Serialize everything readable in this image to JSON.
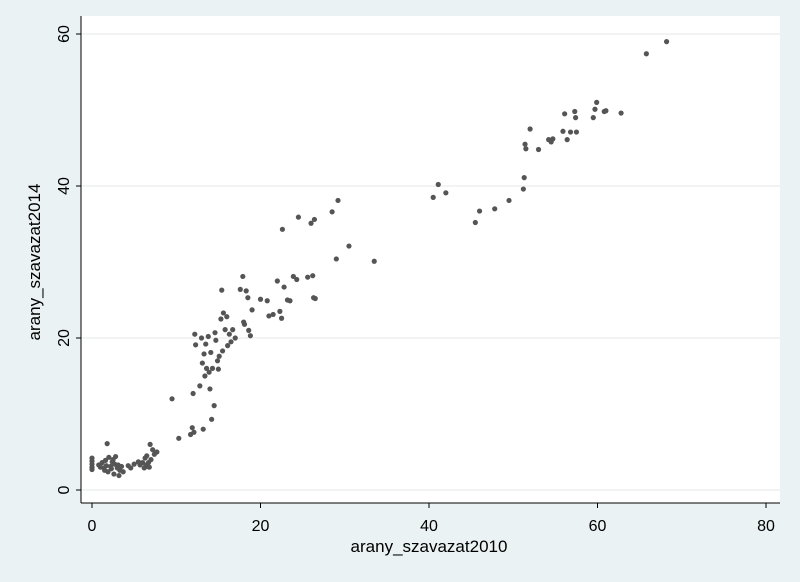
{
  "chart_data": {
    "type": "scatter",
    "title": "",
    "xlabel": "arany_szavazat2010",
    "ylabel": "arany_szavazat2014",
    "xlim": [
      0,
      80
    ],
    "ylim": [
      0,
      60
    ],
    "xticks": [
      0,
      20,
      40,
      60,
      80
    ],
    "yticks": [
      0,
      20,
      40,
      60
    ],
    "grid": "horizontal",
    "legend": "none",
    "colors": {
      "background": "#eaf2f3",
      "plot_area": "#ffffff",
      "marker": "#555555",
      "grid": "#e4e9ea"
    },
    "points": [
      [
        0,
        4.2
      ],
      [
        0,
        3.8
      ],
      [
        0,
        3.4
      ],
      [
        0,
        3.0
      ],
      [
        0,
        2.7
      ],
      [
        0.8,
        3.3
      ],
      [
        1.0,
        3.0
      ],
      [
        1.2,
        3.6
      ],
      [
        1.4,
        2.9
      ],
      [
        1.5,
        2.6
      ],
      [
        1.6,
        3.9
      ],
      [
        1.7,
        3.2
      ],
      [
        1.8,
        6.1
      ],
      [
        1.9,
        2.4
      ],
      [
        2.0,
        4.3
      ],
      [
        2.2,
        3.1
      ],
      [
        2.3,
        2.8
      ],
      [
        2.4,
        3.7
      ],
      [
        2.5,
        4.0
      ],
      [
        2.6,
        2.1
      ],
      [
        2.7,
        3.4
      ],
      [
        2.8,
        4.4
      ],
      [
        3.0,
        2.9
      ],
      [
        3.1,
        3.3
      ],
      [
        3.2,
        1.9
      ],
      [
        3.3,
        2.6
      ],
      [
        3.5,
        3.1
      ],
      [
        3.7,
        2.4
      ],
      [
        4.3,
        3.2
      ],
      [
        4.6,
        2.9
      ],
      [
        5.0,
        3.4
      ],
      [
        5.5,
        3.7
      ],
      [
        5.7,
        3.3
      ],
      [
        6.0,
        3.6
      ],
      [
        6.2,
        2.9
      ],
      [
        6.3,
        4.2
      ],
      [
        6.4,
        3.3
      ],
      [
        6.5,
        4.5
      ],
      [
        6.6,
        3.1
      ],
      [
        6.7,
        3.6
      ],
      [
        6.8,
        3.0
      ],
      [
        6.9,
        6.0
      ],
      [
        7.0,
        4.0
      ],
      [
        7.2,
        5.3
      ],
      [
        7.4,
        4.7
      ],
      [
        7.7,
        5.0
      ],
      [
        9.5,
        12.0
      ],
      [
        10.3,
        6.8
      ],
      [
        11.7,
        7.3
      ],
      [
        11.9,
        8.2
      ],
      [
        12.0,
        12.7
      ],
      [
        12.1,
        7.6
      ],
      [
        12.2,
        20.5
      ],
      [
        12.3,
        19.1
      ],
      [
        12.8,
        13.7
      ],
      [
        13.0,
        20.0
      ],
      [
        13.1,
        16.7
      ],
      [
        13.2,
        8.0
      ],
      [
        13.3,
        17.9
      ],
      [
        13.4,
        15.0
      ],
      [
        13.5,
        19.2
      ],
      [
        13.6,
        16.0
      ],
      [
        13.8,
        20.2
      ],
      [
        13.9,
        15.5
      ],
      [
        14.0,
        13.3
      ],
      [
        14.1,
        18.1
      ],
      [
        14.2,
        9.3
      ],
      [
        14.3,
        16.0
      ],
      [
        14.5,
        11.1
      ],
      [
        14.6,
        20.7
      ],
      [
        14.7,
        19.7
      ],
      [
        14.9,
        17.0
      ],
      [
        15.0,
        15.9
      ],
      [
        15.1,
        17.6
      ],
      [
        15.3,
        22.5
      ],
      [
        15.4,
        26.3
      ],
      [
        15.5,
        18.3
      ],
      [
        15.6,
        23.3
      ],
      [
        15.8,
        21.1
      ],
      [
        16.0,
        22.8
      ],
      [
        16.1,
        19.0
      ],
      [
        16.3,
        20.5
      ],
      [
        16.5,
        19.5
      ],
      [
        16.7,
        21.1
      ],
      [
        17.0,
        20.0
      ],
      [
        17.6,
        26.4
      ],
      [
        17.9,
        28.1
      ],
      [
        18.0,
        22.1
      ],
      [
        18.1,
        21.8
      ],
      [
        18.3,
        26.2
      ],
      [
        18.5,
        25.3
      ],
      [
        18.6,
        21.0
      ],
      [
        18.8,
        20.3
      ],
      [
        19.0,
        23.7
      ],
      [
        20.0,
        25.1
      ],
      [
        20.8,
        24.9
      ],
      [
        21.0,
        22.9
      ],
      [
        21.5,
        23.1
      ],
      [
        22.0,
        27.5
      ],
      [
        22.3,
        23.5
      ],
      [
        22.5,
        22.6
      ],
      [
        22.6,
        34.3
      ],
      [
        22.8,
        26.7
      ],
      [
        23.2,
        25.0
      ],
      [
        23.5,
        24.9
      ],
      [
        23.9,
        28.1
      ],
      [
        24.3,
        27.7
      ],
      [
        24.5,
        35.9
      ],
      [
        25.6,
        28.0
      ],
      [
        26.0,
        35.1
      ],
      [
        26.2,
        28.2
      ],
      [
        26.3,
        25.3
      ],
      [
        26.4,
        35.6
      ],
      [
        26.5,
        25.2
      ],
      [
        28.5,
        36.6
      ],
      [
        29.0,
        30.4
      ],
      [
        29.2,
        38.1
      ],
      [
        30.5,
        32.1
      ],
      [
        33.5,
        30.1
      ],
      [
        40.5,
        38.5
      ],
      [
        41.1,
        40.2
      ],
      [
        42.0,
        39.1
      ],
      [
        45.5,
        35.2
      ],
      [
        46.0,
        36.7
      ],
      [
        47.8,
        37.0
      ],
      [
        49.5,
        38.1
      ],
      [
        51.2,
        39.6
      ],
      [
        51.3,
        41.1
      ],
      [
        51.4,
        45.5
      ],
      [
        51.5,
        44.9
      ],
      [
        52.0,
        47.5
      ],
      [
        53.0,
        44.8
      ],
      [
        54.2,
        46.1
      ],
      [
        54.5,
        45.8
      ],
      [
        54.7,
        46.2
      ],
      [
        55.9,
        47.2
      ],
      [
        56.1,
        49.5
      ],
      [
        56.4,
        46.1
      ],
      [
        56.8,
        47.1
      ],
      [
        57.3,
        49.8
      ],
      [
        57.4,
        49.0
      ],
      [
        57.5,
        47.1
      ],
      [
        59.5,
        49.0
      ],
      [
        59.7,
        50.1
      ],
      [
        59.9,
        51.0
      ],
      [
        60.8,
        49.8
      ],
      [
        61.0,
        49.9
      ],
      [
        62.8,
        49.6
      ],
      [
        65.8,
        57.4
      ],
      [
        68.2,
        59.0
      ]
    ]
  }
}
